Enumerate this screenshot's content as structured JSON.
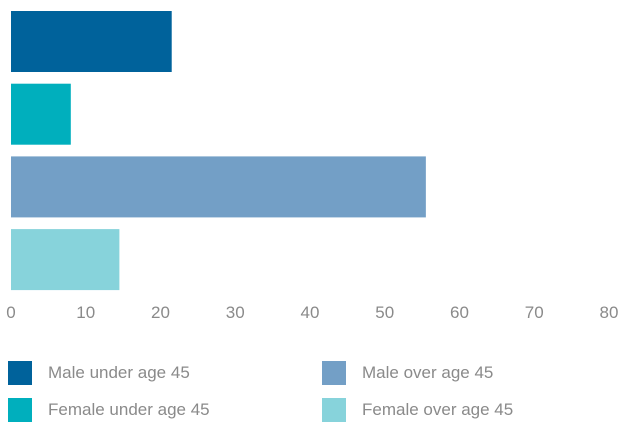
{
  "chart_data": {
    "type": "bar",
    "orientation": "horizontal",
    "title": "",
    "xlabel": "",
    "ylabel": "",
    "xlim": [
      0,
      80
    ],
    "ticks": [
      0,
      10,
      20,
      30,
      40,
      50,
      60,
      70,
      80
    ],
    "grid": false,
    "legend_position": "bottom",
    "series": [
      {
        "name": "Male under age 45",
        "value": 21.5,
        "color": "#00629b"
      },
      {
        "name": "Female under age 45",
        "value": 8,
        "color": "#00afbd"
      },
      {
        "name": "Male over age 45",
        "value": 55.5,
        "color": "#739fc6"
      },
      {
        "name": "Female over age 45",
        "value": 14.5,
        "color": "#87d3db"
      }
    ]
  },
  "legend": {
    "items": [
      {
        "label": "Male under age 45",
        "color": "#00629b"
      },
      {
        "label": "Male over age 45",
        "color": "#739fc6"
      },
      {
        "label": "Female under age 45",
        "color": "#00afbd"
      },
      {
        "label": "Female over age 45",
        "color": "#87d3db"
      }
    ]
  }
}
